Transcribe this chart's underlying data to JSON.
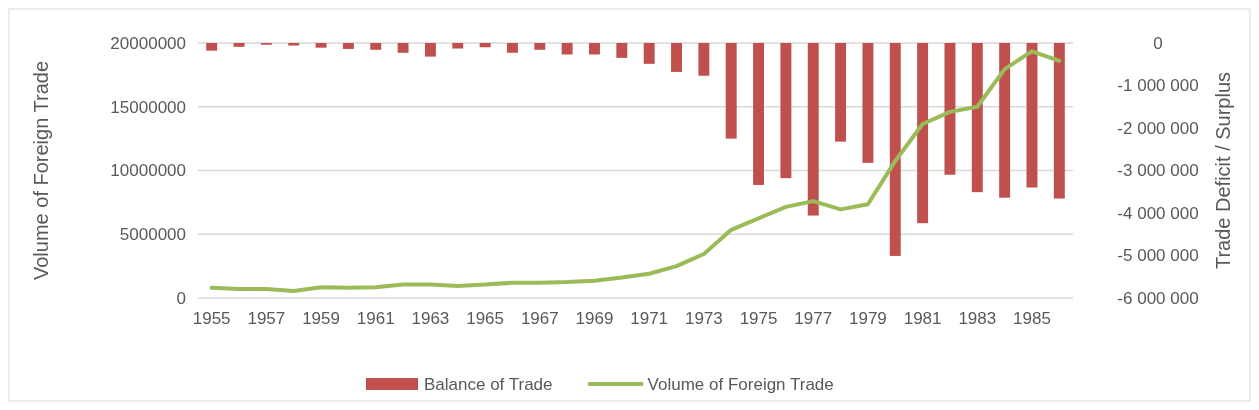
{
  "chart_data": {
    "type": "bar",
    "ylabel": "Volume of Foreign Trade",
    "y2label": "Trade Deficit / Surplus",
    "categories": [
      "1955",
      null,
      "1957",
      null,
      "1959",
      null,
      "1961",
      null,
      "1963",
      null,
      "1965",
      null,
      "1967",
      null,
      "1969",
      null,
      "1971",
      null,
      "1973",
      null,
      "1975",
      null,
      "1977",
      null,
      "1979",
      null,
      "1981",
      null,
      "1983",
      null,
      "1985",
      null
    ],
    "series": [
      {
        "name": "Balance of Trade",
        "axis": "y2",
        "color": "#c0504d",
        "values": [
          -180000,
          -90000,
          -40000,
          -60000,
          -110000,
          -140000,
          -160000,
          -230000,
          -320000,
          -130000,
          -100000,
          -230000,
          -160000,
          -270000,
          -270000,
          -350000,
          -490000,
          -680000,
          -770000,
          -2250000,
          -3340000,
          -3180000,
          -4060000,
          -2320000,
          -2820000,
          -5010000,
          -4240000,
          -3100000,
          -3510000,
          -3640000,
          -3400000,
          -3660000
        ]
      },
      {
        "name": "Volume of Foreign Trade",
        "type": "line",
        "color": "#9bbb59",
        "values": [
          800000,
          700000,
          700000,
          550000,
          850000,
          800000,
          850000,
          1050000,
          1050000,
          950000,
          1050000,
          1200000,
          1200000,
          1250000,
          1350000,
          1600000,
          1900000,
          2500000,
          3450000,
          5350000,
          6250000,
          7150000,
          7600000,
          6950000,
          7350000,
          10750000,
          13650000,
          14600000,
          15000000,
          17950000,
          19350000,
          18600000
        ]
      }
    ],
    "ylim": [
      0,
      20000000
    ],
    "yticks": [
      0,
      5000000,
      10000000,
      15000000,
      20000000
    ],
    "y2lim": [
      -6000000,
      0
    ],
    "y2ticks": [
      {
        "value": -6000000,
        "label": "-6 000 000"
      },
      {
        "value": -5000000,
        "label": "-5 000 000"
      },
      {
        "value": -4000000,
        "label": "-4 000 000"
      },
      {
        "value": -3000000,
        "label": "-3 000 000"
      },
      {
        "value": -2000000,
        "label": "-2 000 000"
      },
      {
        "value": -1000000,
        "label": "-1 000 000"
      },
      0
    ],
    "grid": "y",
    "legend": "bottom",
    "marker": "none",
    "line_style": "solid"
  }
}
